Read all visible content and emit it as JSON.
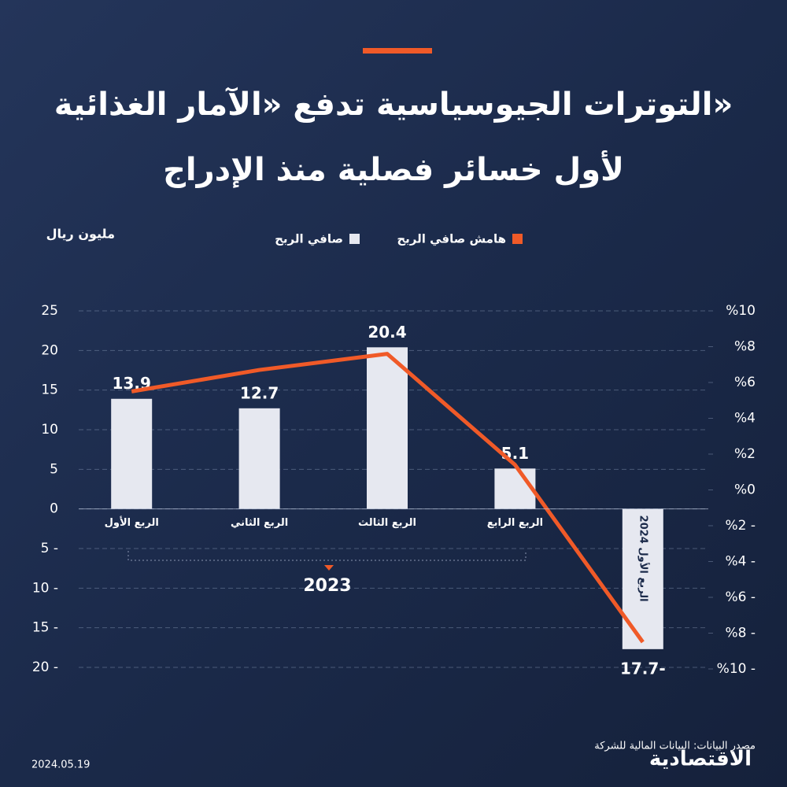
{
  "chart_data": {
    "type": "bar",
    "title": [
      "التوترات الجيوسياسية تدفع «الآمار الغذائية»",
      "لأول خسائر فصلية منذ الإدراج"
    ],
    "y_label": "مليون ريال",
    "group_label": "2023",
    "categories": [
      "الربع الأول",
      "الربع الثاني",
      "الربع الثالث",
      "الربع الرابع",
      "الربع الأول 2024"
    ],
    "series": [
      {
        "name": "صافي الربح",
        "color": "#e6e8f0",
        "values": [
          13.9,
          12.7,
          20.4,
          5.1,
          -17.7
        ],
        "value_labels": [
          "13.9",
          "12.7",
          "20.4",
          "5.1",
          "17.7-"
        ]
      },
      {
        "name": "هامش صافي الربح",
        "color": "#f05a28",
        "type": "line",
        "axis": "y2",
        "values": [
          5.5,
          6.7,
          7.6,
          1.4,
          -8.5
        ]
      }
    ],
    "ylim": [
      -20,
      25
    ],
    "yticks": [
      25,
      20,
      15,
      10,
      5,
      0,
      {
        "value": -5,
        "label": "5 -"
      },
      {
        "value": -10,
        "label": "10 -"
      },
      {
        "value": -15,
        "label": "15 -"
      },
      {
        "value": -20,
        "label": "20 -"
      }
    ],
    "y2lim": [
      -10,
      10
    ],
    "y2ticks": [
      {
        "value": 10,
        "label": "%10"
      },
      {
        "value": 8,
        "label": "%8"
      },
      {
        "value": 6,
        "label": "%6"
      },
      {
        "value": 4,
        "label": "%4"
      },
      {
        "value": 2,
        "label": "%2"
      },
      {
        "value": 0,
        "label": "%0"
      },
      {
        "value": -2,
        "label": "%2 -"
      },
      {
        "value": -4,
        "label": "%4 -"
      },
      {
        "value": -6,
        "label": "%6 -"
      },
      {
        "value": -8,
        "label": "%8 -"
      },
      {
        "value": -10,
        "label": "%10 -"
      }
    ],
    "grid": true,
    "legend": "top"
  },
  "source": "مصدر البيانات: البيانات المالية للشركة",
  "date": "2024.05.19",
  "brand": "الاقتصادية"
}
